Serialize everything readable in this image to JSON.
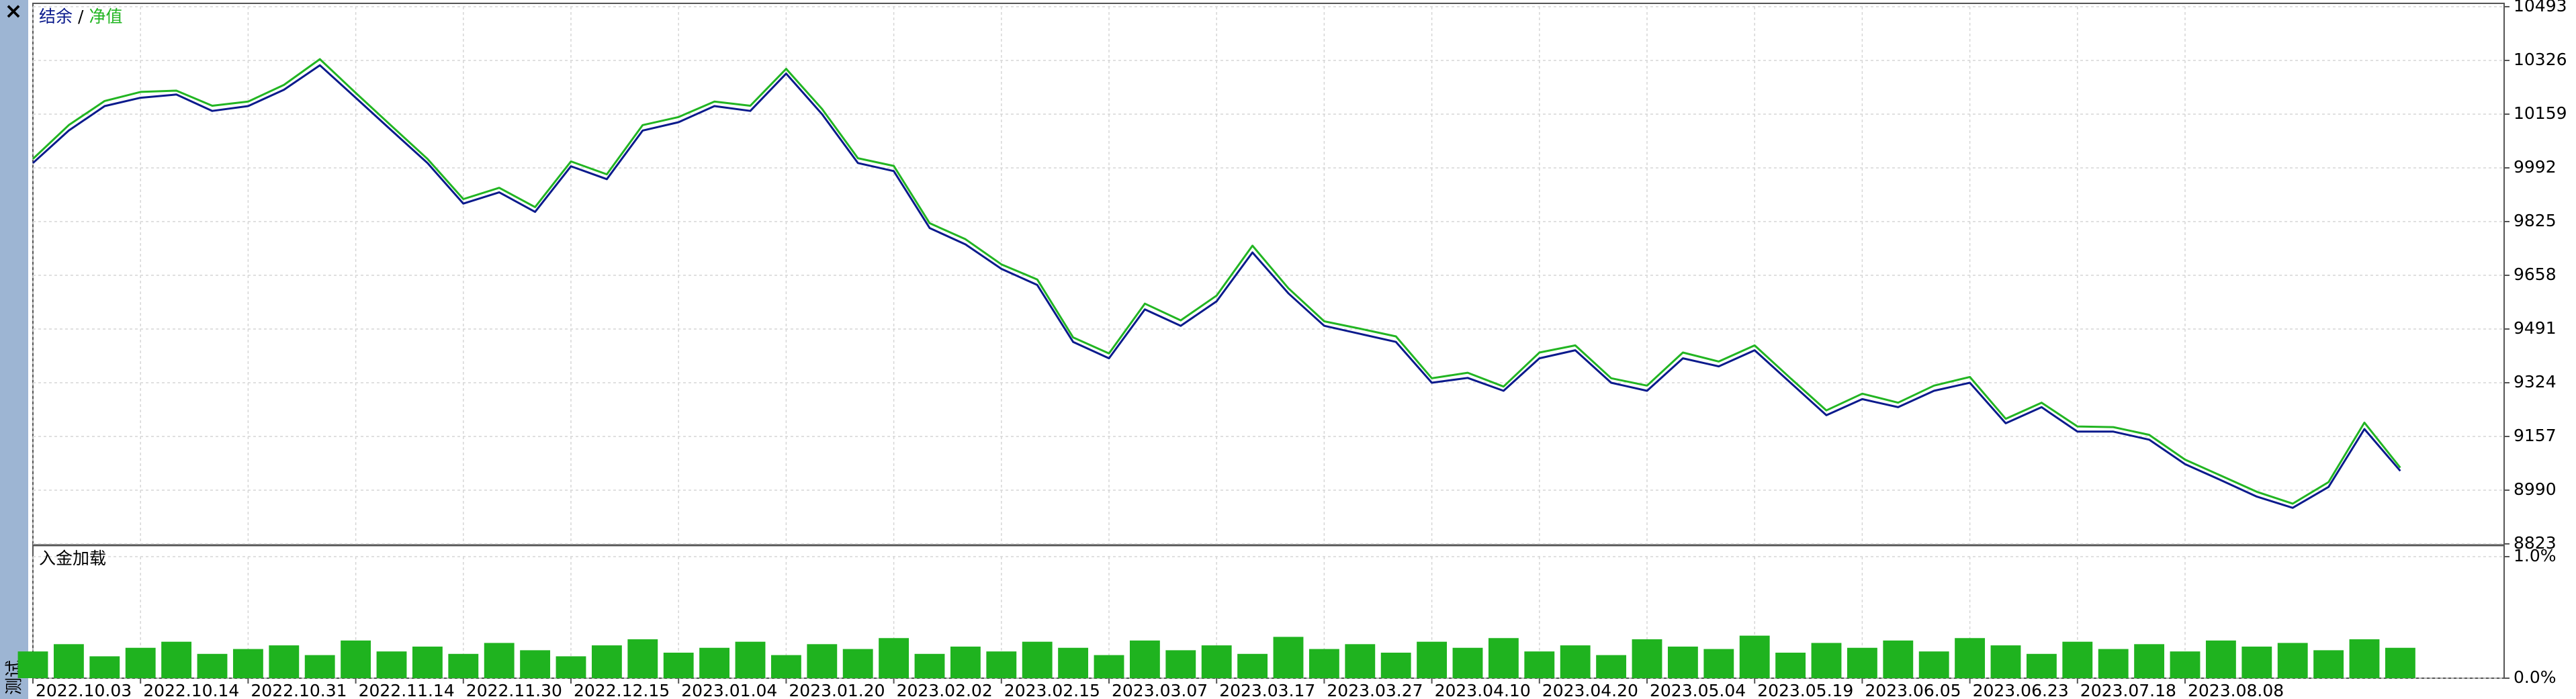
{
  "side_tab": "测试",
  "chart_data": [
    {
      "type": "line",
      "legend_separator": "/",
      "categories": [
        "2022.10.03",
        null,
        null,
        "2022.10.14",
        null,
        null,
        "2022.10.31",
        null,
        null,
        "2022.11.14",
        null,
        null,
        "2022.11.30",
        null,
        null,
        "2022.12.15",
        null,
        null,
        "2023.01.04",
        null,
        null,
        "2023.01.20",
        null,
        null,
        "2023.02.02",
        null,
        null,
        "2023.02.15",
        null,
        null,
        "2023.03.07",
        null,
        null,
        "2023.03.17",
        null,
        null,
        "2023.03.27",
        null,
        null,
        "2023.04.10",
        null,
        null,
        "2023.04.20",
        null,
        null,
        "2023.05.04",
        null,
        null,
        "2023.05.19",
        null,
        null,
        "2023.06.05",
        null,
        null,
        "2023.06.23",
        null,
        null,
        "2023.07.18",
        null,
        null,
        "2023.08.08",
        null,
        null,
        null,
        null,
        null,
        null
      ],
      "series": [
        {
          "name": "结余",
          "color": "#0a1a8c",
          "values": [
            10007,
            10108,
            10184,
            10210,
            10220,
            10169,
            10184,
            10235,
            10311,
            10210,
            10108,
            10007,
            9881,
            9916,
            9855,
            9997,
            9957,
            10108,
            10134,
            10184,
            10169,
            10285,
            10159,
            10007,
            9982,
            9805,
            9754,
            9678,
            9628,
            9451,
            9400,
            9552,
            9501,
            9577,
            9729,
            9602,
            9501,
            9476,
            9451,
            9324,
            9339,
            9299,
            9400,
            9425,
            9324,
            9299,
            9400,
            9375,
            9425,
            9324,
            9223,
            9273,
            9248,
            9299,
            9324,
            9198,
            9248,
            9172,
            9172,
            9147,
            9071,
            9021,
            8970,
            8935,
            9000,
            9180,
            9050
          ]
        },
        {
          "name": "净值",
          "color": "#22b522",
          "values": [
            10020,
            10125,
            10200,
            10228,
            10232,
            10185,
            10198,
            10250,
            10330,
            10225,
            10122,
            10020,
            9895,
            9930,
            9870,
            10012,
            9972,
            10125,
            10150,
            10198,
            10185,
            10300,
            10175,
            10022,
            9998,
            9820,
            9770,
            9692,
            9645,
            9465,
            9415,
            9570,
            9518,
            9595,
            9750,
            9618,
            9515,
            9492,
            9468,
            9338,
            9355,
            9312,
            9418,
            9440,
            9338,
            9315,
            9418,
            9390,
            9440,
            9338,
            9238,
            9290,
            9262,
            9315,
            9342,
            9212,
            9262,
            9188,
            9186,
            9162,
            9085,
            9035,
            8985,
            8948,
            9015,
            9200,
            9060
          ]
        }
      ],
      "ylim": [
        8823,
        10493
      ],
      "yticks": [
        8823,
        8990,
        9157,
        9324,
        9491,
        9658,
        9825,
        9992,
        10159,
        10326,
        10493
      ],
      "grid": true
    },
    {
      "type": "bar",
      "title": "入金加载",
      "color": "#1fb31f",
      "values": [
        0.22,
        0.28,
        0.18,
        0.25,
        0.3,
        0.2,
        0.24,
        0.27,
        0.19,
        0.31,
        0.22,
        0.26,
        0.2,
        0.29,
        0.23,
        0.18,
        0.27,
        0.32,
        0.21,
        0.25,
        0.3,
        0.19,
        0.28,
        0.24,
        0.33,
        0.2,
        0.26,
        0.22,
        0.3,
        0.25,
        0.19,
        0.31,
        0.23,
        0.27,
        0.2,
        0.34,
        0.24,
        0.28,
        0.21,
        0.3,
        0.25,
        0.33,
        0.22,
        0.27,
        0.19,
        0.32,
        0.26,
        0.24,
        0.35,
        0.21,
        0.29,
        0.25,
        0.31,
        0.22,
        0.33,
        0.27,
        0.2,
        0.3,
        0.24,
        0.28,
        0.22,
        0.31,
        0.26,
        0.29,
        0.23,
        0.32,
        0.25
      ],
      "ylim": [
        0,
        1
      ],
      "yticks": [
        {
          "value": 0,
          "label": "0.0%"
        },
        {
          "value": 1,
          "label": "1.0%"
        }
      ],
      "grid": true
    }
  ]
}
